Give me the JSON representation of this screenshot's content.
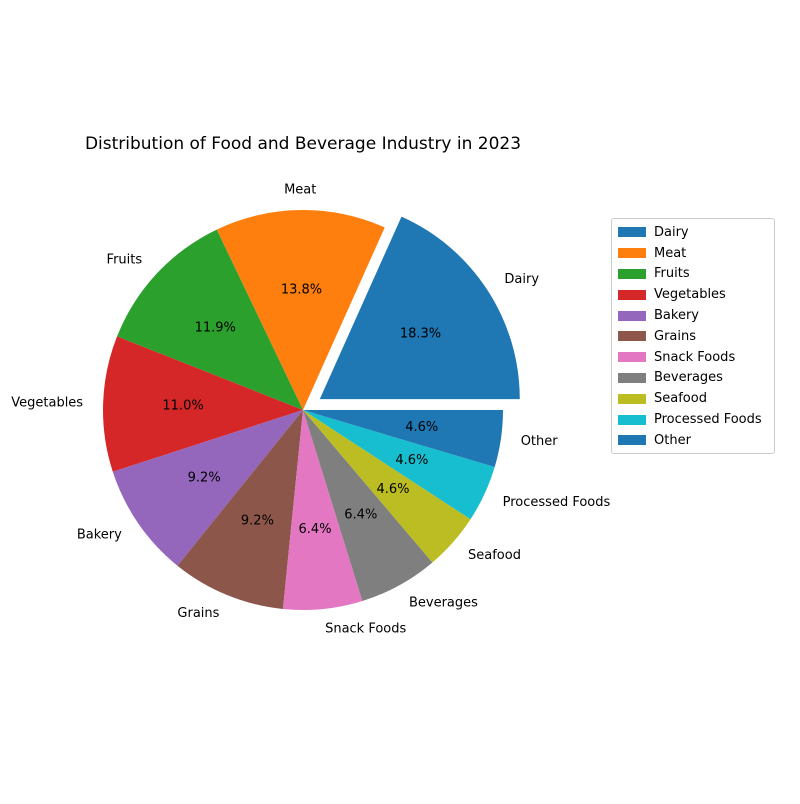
{
  "chart_data": {
    "type": "pie",
    "title": "Distribution of Food and Beverage Industry in 2023",
    "categories": [
      "Dairy",
      "Meat",
      "Fruits",
      "Vegetables",
      "Bakery",
      "Grains",
      "Snack Foods",
      "Beverages",
      "Seafood",
      "Processed Foods",
      "Other"
    ],
    "values": [
      18.3,
      13.8,
      11.9,
      11.0,
      9.2,
      9.2,
      6.4,
      6.4,
      4.6,
      4.6,
      4.6
    ],
    "value_labels": [
      "18.3%",
      "13.8%",
      "11.9%",
      "11.0%",
      "9.2%",
      "9.2%",
      "6.4%",
      "6.4%",
      "4.6%",
      "4.6%",
      "4.6%"
    ],
    "exploded": [
      "Dairy"
    ],
    "colors": [
      "#1f77b4",
      "#ff7f0e",
      "#2ca02c",
      "#d62728",
      "#9467bd",
      "#8c564b",
      "#e377c2",
      "#7f7f7f",
      "#bcbd22",
      "#17becf",
      "#1f77b4"
    ],
    "legend": {
      "placement": "right",
      "entries": [
        "Dairy",
        "Meat",
        "Fruits",
        "Vegetables",
        "Bakery",
        "Grains",
        "Snack Foods",
        "Beverages",
        "Seafood",
        "Processed Foods",
        "Other"
      ]
    }
  }
}
